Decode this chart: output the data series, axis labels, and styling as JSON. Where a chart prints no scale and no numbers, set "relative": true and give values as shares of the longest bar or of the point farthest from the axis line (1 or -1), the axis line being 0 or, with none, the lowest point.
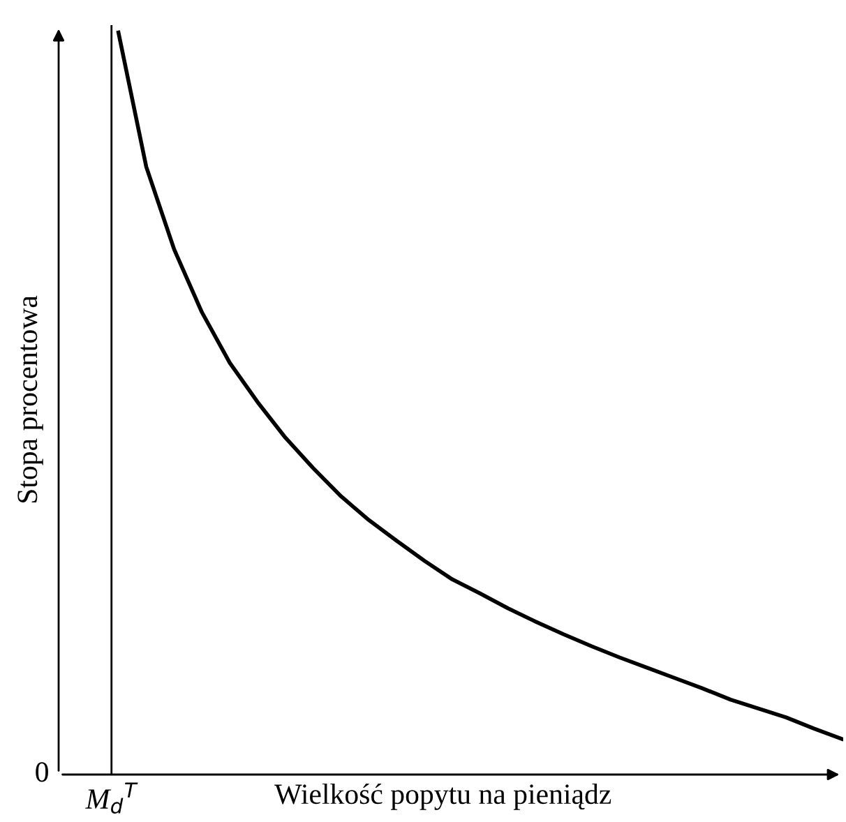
{
  "chart_data": {
    "type": "line",
    "relative": true,
    "xlabel": "Wielkość popytu na pieniądz",
    "ylabel": "Stopa procentowa",
    "categories": [
      null,
      null,
      null,
      null,
      null,
      null,
      null,
      null,
      null,
      null,
      null,
      null,
      null,
      null,
      null,
      null,
      null,
      null,
      null,
      null,
      null,
      null,
      null,
      null,
      null,
      null,
      null
    ],
    "series": [
      {
        "color": "#000000",
        "values": [
          1,
          0.819,
          0.708,
          0.623,
          0.555,
          0.502,
          0.454,
          0.413,
          0.375,
          0.343,
          0.315,
          0.288,
          0.263,
          0.244,
          0.224,
          0.206,
          0.189,
          0.173,
          0.158,
          0.144,
          0.13,
          0.116,
          0.101,
          0.089,
          0.077,
          0.062,
          0.048
        ]
      }
    ],
    "annotations": [
      "0",
      "M$_{d}$$^{T}$"
    ],
    "grid": false,
    "legend": false,
    "marker": "none",
    "line_style": "solid"
  }
}
